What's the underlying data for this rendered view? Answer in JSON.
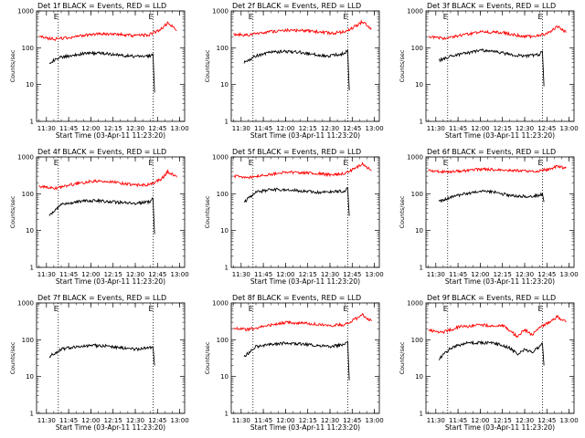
{
  "chart_data": [
    {
      "type": "line",
      "title": "Det 1f BLACK = Events, RED = LLD",
      "xlabel": "Start Time (03-Apr-11 11:23:20)",
      "ylabel": "Counts/sec",
      "xticks": [
        "11:30",
        "11:45",
        "12:00",
        "12:15",
        "12:30",
        "12:45",
        "13:00"
      ],
      "yticks": [
        "1",
        "10",
        "100",
        "1000"
      ],
      "ylim": [
        1,
        1000
      ],
      "yscale": "log",
      "xlim": [
        "11:23:20",
        "13:03:20"
      ],
      "markers": [
        "11:38",
        "12:42"
      ],
      "marker_label": "E",
      "series": [
        {
          "name": "Events",
          "color": "#000000",
          "x": [
            "11:32",
            "11:40",
            "11:50",
            "12:00",
            "12:10",
            "12:20",
            "12:30",
            "12:40",
            "12:42",
            "12:43"
          ],
          "y": [
            40,
            55,
            65,
            72,
            70,
            62,
            58,
            60,
            70,
            6
          ]
        },
        {
          "name": "LLD",
          "color": "#ff0000",
          "x": [
            "11:25",
            "11:35",
            "11:45",
            "12:00",
            "12:15",
            "12:30",
            "12:40",
            "12:48",
            "12:52",
            "12:58"
          ],
          "y": [
            200,
            170,
            190,
            230,
            240,
            210,
            230,
            330,
            480,
            300
          ]
        }
      ]
    },
    {
      "type": "line",
      "title": "Det 2f BLACK = Events, RED = LLD",
      "xlabel": "Start Time (03-Apr-11 11:23:20)",
      "ylabel": "Counts/sec",
      "xticks": [
        "11:30",
        "11:45",
        "12:00",
        "12:15",
        "12:30",
        "12:45",
        "13:00"
      ],
      "yticks": [
        "1",
        "10",
        "100",
        "1000"
      ],
      "ylim": [
        1,
        1000
      ],
      "yscale": "log",
      "xlim": [
        "11:23:20",
        "13:03:20"
      ],
      "markers": [
        "11:38",
        "12:42"
      ],
      "marker_label": "E",
      "series": [
        {
          "name": "Events",
          "color": "#000000",
          "x": [
            "11:32",
            "11:40",
            "11:50",
            "12:00",
            "12:10",
            "12:20",
            "12:30",
            "12:40",
            "12:42",
            "12:43"
          ],
          "y": [
            40,
            60,
            75,
            80,
            75,
            65,
            60,
            70,
            85,
            7
          ]
        },
        {
          "name": "LLD",
          "color": "#ff0000",
          "x": [
            "11:25",
            "11:35",
            "11:45",
            "12:00",
            "12:15",
            "12:30",
            "12:40",
            "12:48",
            "12:52",
            "12:58"
          ],
          "y": [
            230,
            220,
            260,
            300,
            290,
            250,
            270,
            400,
            520,
            330
          ]
        }
      ]
    },
    {
      "type": "line",
      "title": "Det 3f BLACK = Events, RED = LLD",
      "xlabel": "Start Time (03-Apr-11 11:23:20)",
      "ylabel": "Counts/sec",
      "xticks": [
        "11:30",
        "11:45",
        "12:00",
        "12:15",
        "12:30",
        "12:45",
        "13:00"
      ],
      "yticks": [
        "1",
        "10",
        "100",
        "1000"
      ],
      "ylim": [
        1,
        1000
      ],
      "yscale": "log",
      "xlim": [
        "11:23:20",
        "13:03:20"
      ],
      "markers": [
        "11:38",
        "12:42"
      ],
      "marker_label": "E",
      "series": [
        {
          "name": "Events",
          "color": "#000000",
          "x": [
            "11:32",
            "11:40",
            "11:50",
            "12:00",
            "12:10",
            "12:20",
            "12:30",
            "12:40",
            "12:42",
            "12:43"
          ],
          "y": [
            45,
            60,
            70,
            85,
            80,
            65,
            60,
            65,
            80,
            9
          ]
        },
        {
          "name": "LLD",
          "color": "#ff0000",
          "x": [
            "11:25",
            "11:35",
            "11:45",
            "12:00",
            "12:15",
            "12:30",
            "12:40",
            "12:48",
            "12:52",
            "12:58"
          ],
          "y": [
            200,
            180,
            210,
            270,
            260,
            200,
            210,
            280,
            380,
            260
          ]
        }
      ]
    },
    {
      "type": "line",
      "title": "Det 4f BLACK = Events, RED = LLD",
      "xlabel": "Start Time (03-Apr-11 11:23:20)",
      "ylabel": "Counts/sec",
      "xticks": [
        "11:30",
        "11:45",
        "12:00",
        "12:15",
        "12:30",
        "12:45",
        "13:00"
      ],
      "yticks": [
        "1",
        "10",
        "100",
        "1000"
      ],
      "ylim": [
        1,
        1000
      ],
      "yscale": "log",
      "xlim": [
        "11:23:20",
        "13:03:20"
      ],
      "markers": [
        "11:38",
        "12:42"
      ],
      "marker_label": "E",
      "series": [
        {
          "name": "Events",
          "color": "#000000",
          "x": [
            "11:32",
            "11:40",
            "11:50",
            "12:00",
            "12:10",
            "12:20",
            "12:30",
            "12:40",
            "12:42",
            "12:43"
          ],
          "y": [
            25,
            50,
            60,
            65,
            62,
            58,
            55,
            60,
            75,
            8
          ]
        },
        {
          "name": "LLD",
          "color": "#ff0000",
          "x": [
            "11:25",
            "11:35",
            "11:45",
            "12:00",
            "12:15",
            "12:30",
            "12:40",
            "12:48",
            "12:52",
            "12:58"
          ],
          "y": [
            160,
            140,
            170,
            220,
            210,
            170,
            180,
            260,
            400,
            280
          ]
        }
      ]
    },
    {
      "type": "line",
      "title": "Det 5f BLACK = Events, RED = LLD",
      "xlabel": "Start Time (03-Apr-11 11:23:20)",
      "ylabel": "Counts/sec",
      "xticks": [
        "11:30",
        "11:45",
        "12:00",
        "12:15",
        "12:30",
        "12:45",
        "13:00"
      ],
      "yticks": [
        "1",
        "10",
        "100",
        "1000"
      ],
      "ylim": [
        1,
        1000
      ],
      "yscale": "log",
      "xlim": [
        "11:23:20",
        "13:03:20"
      ],
      "markers": [
        "11:38",
        "12:42"
      ],
      "marker_label": "E",
      "series": [
        {
          "name": "Events",
          "color": "#000000",
          "x": [
            "11:32",
            "11:40",
            "11:50",
            "12:00",
            "12:10",
            "12:20",
            "12:30",
            "12:40",
            "12:42",
            "12:43"
          ],
          "y": [
            60,
            110,
            130,
            130,
            120,
            110,
            110,
            120,
            140,
            25
          ]
        },
        {
          "name": "LLD",
          "color": "#ff0000",
          "x": [
            "11:25",
            "11:35",
            "11:45",
            "12:00",
            "12:15",
            "12:30",
            "12:40",
            "12:48",
            "12:52",
            "12:58"
          ],
          "y": [
            300,
            280,
            320,
            380,
            370,
            330,
            350,
            520,
            650,
            420
          ]
        }
      ]
    },
    {
      "type": "line",
      "title": "Det 6f BLACK = Events, RED = LLD",
      "xlabel": "Start Time (03-Apr-11 11:23:20)",
      "ylabel": "Counts/sec",
      "xticks": [
        "11:30",
        "11:45",
        "12:00",
        "12:15",
        "12:30",
        "12:45",
        "13:00"
      ],
      "yticks": [
        "1",
        "10",
        "100",
        "1000"
      ],
      "ylim": [
        1,
        1000
      ],
      "yscale": "log",
      "xlim": [
        "11:23:20",
        "13:03:20"
      ],
      "markers": [
        "11:38",
        "12:42"
      ],
      "marker_label": "E",
      "series": [
        {
          "name": "Events",
          "color": "#000000",
          "x": [
            "11:32",
            "11:40",
            "11:50",
            "12:00",
            "12:10",
            "12:20",
            "12:30",
            "12:40",
            "12:42",
            "12:43"
          ],
          "y": [
            60,
            80,
            100,
            120,
            110,
            90,
            85,
            90,
            100,
            60
          ]
        },
        {
          "name": "LLD",
          "color": "#ff0000",
          "x": [
            "11:25",
            "11:35",
            "11:45",
            "12:00",
            "12:15",
            "12:30",
            "12:40",
            "12:48",
            "12:52",
            "12:58"
          ],
          "y": [
            420,
            400,
            410,
            460,
            450,
            410,
            420,
            480,
            560,
            500
          ]
        }
      ]
    },
    {
      "type": "line",
      "title": "Det 7f BLACK = Events, RED = LLD",
      "xlabel": "Start Time (03-Apr-11 11:23:20)",
      "ylabel": "Counts/sec",
      "xticks": [
        "11:30",
        "11:45",
        "12:00",
        "12:15",
        "12:30",
        "12:45",
        "13:00"
      ],
      "yticks": [
        "1",
        "10",
        "100",
        "1000"
      ],
      "ylim": [
        1,
        1000
      ],
      "yscale": "log",
      "xlim": [
        "11:23:20",
        "13:03:20"
      ],
      "markers": [
        "11:38",
        "12:42"
      ],
      "marker_label": "E",
      "series": [
        {
          "name": "Events",
          "color": "#000000",
          "x": [
            "11:32",
            "11:40",
            "11:50",
            "12:00",
            "12:10",
            "12:20",
            "12:30",
            "12:40",
            "12:42",
            "12:43"
          ],
          "y": [
            35,
            55,
            65,
            70,
            68,
            60,
            55,
            60,
            65,
            20
          ]
        }
      ]
    },
    {
      "type": "line",
      "title": "Det 8f BLACK = Events, RED = LLD",
      "xlabel": "Start Time (03-Apr-11 11:23:20)",
      "ylabel": "Counts/sec",
      "xticks": [
        "11:30",
        "11:45",
        "12:00",
        "12:15",
        "12:30",
        "12:45",
        "13:00"
      ],
      "yticks": [
        "1",
        "10",
        "100",
        "1000"
      ],
      "ylim": [
        1,
        1000
      ],
      "yscale": "log",
      "xlim": [
        "11:23:20",
        "13:03:20"
      ],
      "markers": [
        "11:38",
        "12:42"
      ],
      "marker_label": "E",
      "series": [
        {
          "name": "Events",
          "color": "#000000",
          "x": [
            "11:32",
            "11:40",
            "11:50",
            "12:00",
            "12:10",
            "12:20",
            "12:30",
            "12:40",
            "12:42",
            "12:43"
          ],
          "y": [
            35,
            65,
            75,
            80,
            78,
            70,
            65,
            75,
            90,
            8
          ]
        },
        {
          "name": "LLD",
          "color": "#ff0000",
          "x": [
            "11:25",
            "11:35",
            "11:45",
            "12:00",
            "12:15",
            "12:30",
            "12:40",
            "12:48",
            "12:52",
            "12:58"
          ],
          "y": [
            200,
            190,
            230,
            290,
            280,
            240,
            260,
            380,
            480,
            320
          ]
        }
      ]
    },
    {
      "type": "line",
      "title": "Det 9f BLACK = Events, RED = LLD",
      "xlabel": "Start Time (03-Apr-11 11:23:20)",
      "ylabel": "Counts/sec",
      "xticks": [
        "11:30",
        "11:45",
        "12:00",
        "12:15",
        "12:30",
        "12:45",
        "13:00"
      ],
      "yticks": [
        "1",
        "10",
        "100",
        "1000"
      ],
      "ylim": [
        1,
        1000
      ],
      "yscale": "log",
      "xlim": [
        "11:23:20",
        "13:03:20"
      ],
      "markers": [
        "11:38",
        "12:42"
      ],
      "marker_label": "E",
      "series": [
        {
          "name": "Events",
          "color": "#000000",
          "x": [
            "11:32",
            "11:40",
            "11:50",
            "12:00",
            "12:10",
            "12:20",
            "12:25",
            "12:30",
            "12:35",
            "12:40",
            "12:42",
            "12:43"
          ],
          "y": [
            30,
            60,
            80,
            85,
            80,
            60,
            40,
            55,
            45,
            65,
            80,
            20
          ]
        },
        {
          "name": "LLD",
          "color": "#ff0000",
          "x": [
            "11:25",
            "11:35",
            "11:45",
            "12:00",
            "12:15",
            "12:20",
            "12:25",
            "12:30",
            "12:35",
            "12:40",
            "12:48",
            "12:52",
            "12:58"
          ],
          "y": [
            180,
            160,
            220,
            250,
            240,
            180,
            120,
            190,
            130,
            220,
            320,
            420,
            300
          ]
        }
      ]
    }
  ]
}
